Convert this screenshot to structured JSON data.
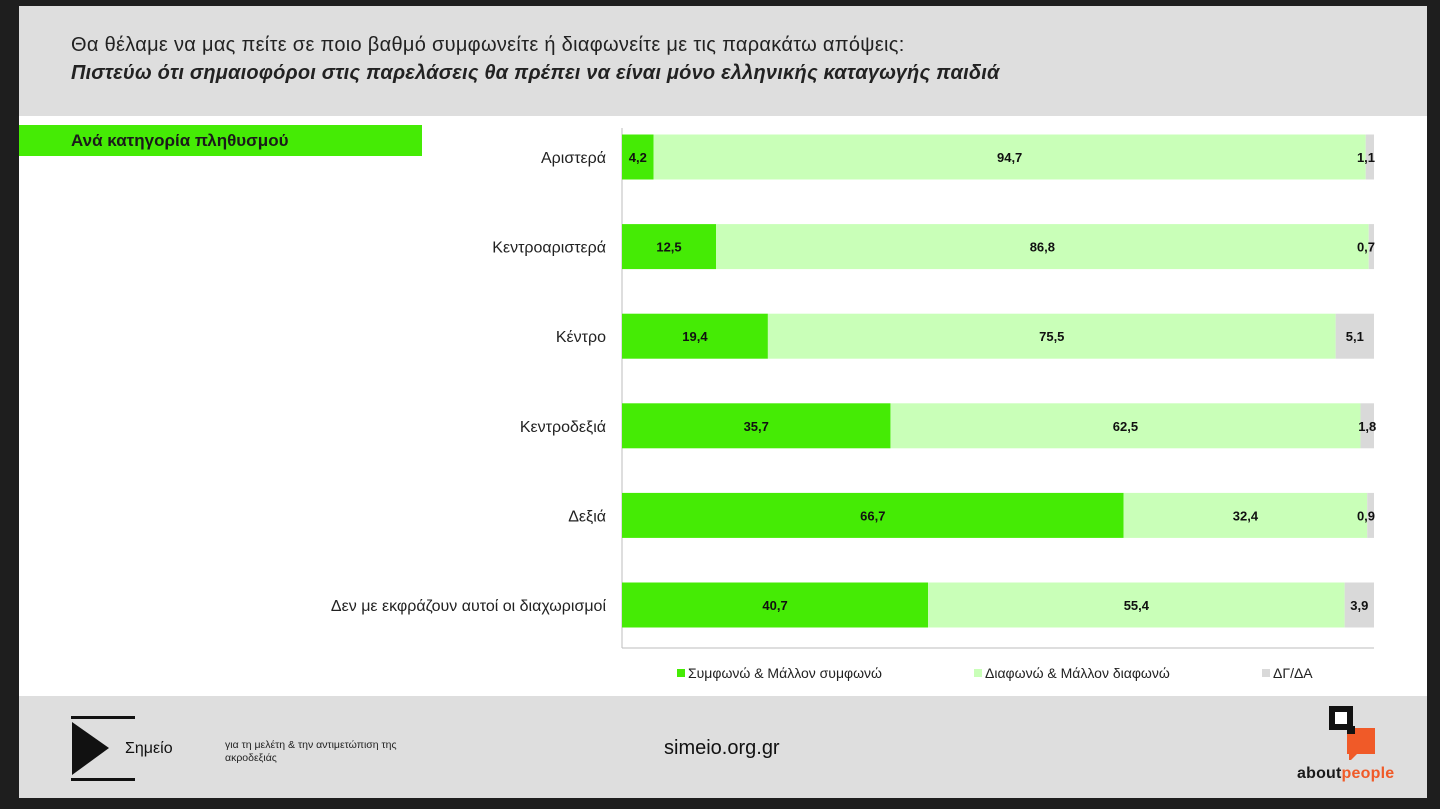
{
  "header": {
    "question": "Θα θέλαμε να μας πείτε σε ποιο βαθμό συμφωνείτε ή διαφωνείτε με τις παρακάτω απόψεις:",
    "statement": "Πιστεύω ότι σημαιοφόροι στις παρελάσεις θα πρέπει να είναι μόνο ελληνικής καταγωγής παιδιά"
  },
  "category_label": "Ανά κατηγορία πληθυσμού",
  "chart_data": {
    "type": "bar",
    "orientation": "horizontal",
    "stacked": true,
    "categories": [
      "Αριστερά",
      "Κεντροαριστερά",
      "Κέντρο",
      "Κεντροδεξιά",
      "Δεξιά",
      "Δεν με εκφράζουν αυτοί οι διαχωρισμοί"
    ],
    "series": [
      {
        "name": "Συμφωνώ & Μάλλον συμφωνώ",
        "color": "#45eb05",
        "values": [
          4.2,
          12.5,
          19.4,
          35.7,
          66.7,
          40.7
        ]
      },
      {
        "name": "Διαφωνώ & Μάλλον διαφωνώ",
        "color": "#c9ffb8",
        "values": [
          94.7,
          86.8,
          75.5,
          62.5,
          32.4,
          55.4
        ]
      },
      {
        "name": "ΔΓ/ΔΑ",
        "color": "#d9d9d9",
        "values": [
          1.1,
          0.7,
          5.1,
          1.8,
          0.9,
          3.9
        ]
      }
    ],
    "xlim": [
      0,
      100
    ],
    "value_labels": true,
    "legend_position": "bottom"
  },
  "footer": {
    "simeio_name": "Σημείο",
    "simeio_tagline": "για τη μελέτη & την αντιμετώπιση της ακροδεξιάς",
    "website": "simeio.org.gr",
    "partner_about": "about",
    "partner_people": "people"
  }
}
